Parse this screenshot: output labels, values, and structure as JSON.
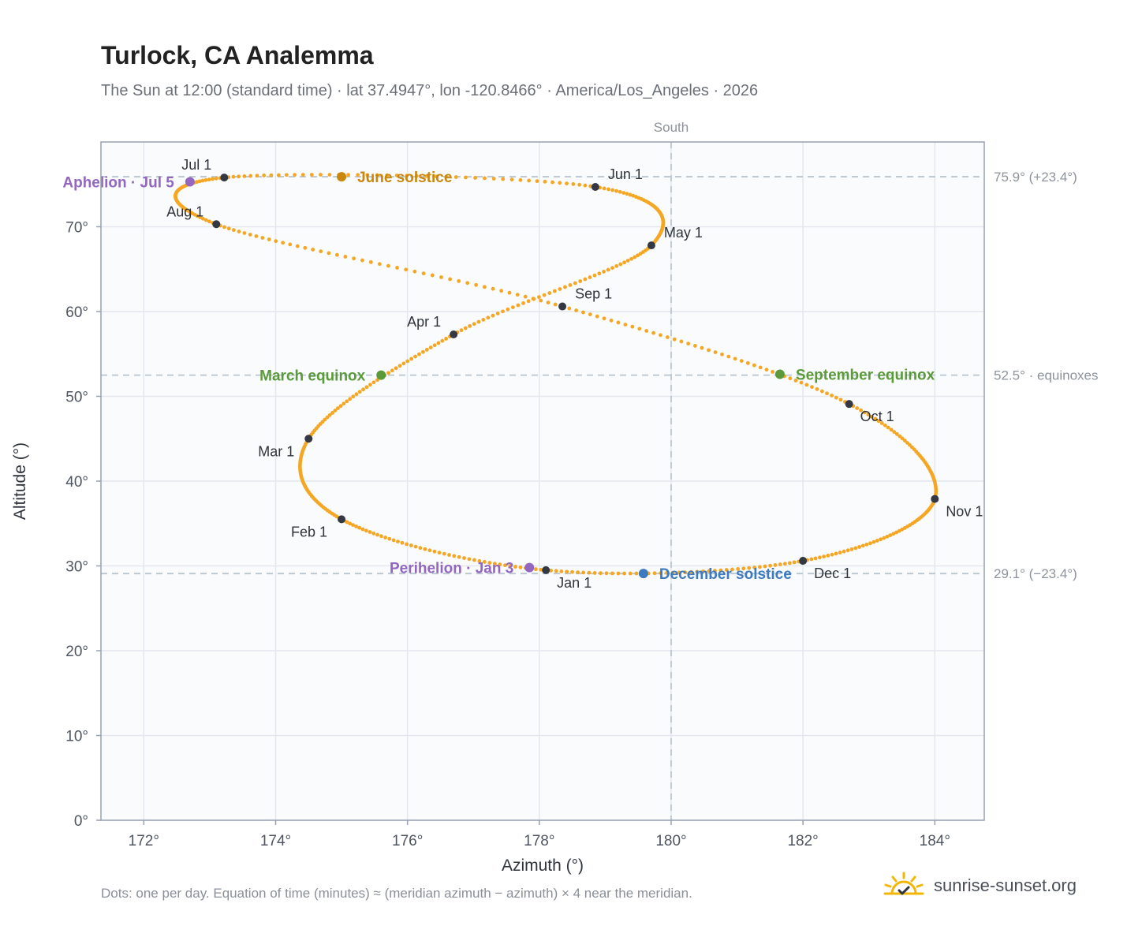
{
  "header": {
    "title": "Turlock, CA Analemma",
    "subtitle": "The Sun at 12:00 (standard time) · lat 37.4947°, lon -120.8466° · America/Los_Angeles · 2026"
  },
  "footer": {
    "note": "Dots: one per day. Equation of time (minutes) ≈ (meridian azimuth − azimuth) × 4 near the meridian.",
    "brand": "sunrise-sunset.org",
    "brand_icon": "sun-check-icon"
  },
  "chart_data": {
    "type": "scatter",
    "title": "Turlock, CA Analemma",
    "xlabel": "Azimuth (°)",
    "ylabel": "Altitude (°)",
    "xlim": [
      171.35,
      184.75
    ],
    "ylim": [
      0,
      80
    ],
    "xticks": [
      172,
      174,
      176,
      178,
      180,
      182,
      184
    ],
    "xtick_labels": [
      "172°",
      "174°",
      "176°",
      "178°",
      "180°",
      "182°",
      "184°"
    ],
    "yticks": [
      0,
      10,
      20,
      30,
      40,
      50,
      60,
      70
    ],
    "ytick_labels": [
      "0°",
      "10°",
      "20°",
      "30°",
      "40°",
      "50°",
      "60°",
      "70°"
    ],
    "grid": true,
    "meridian": {
      "azimuth": 180,
      "label": "South"
    },
    "reference_lines": [
      {
        "altitude": 75.9,
        "label": "75.9° (+23.4°)"
      },
      {
        "altitude": 52.5,
        "label": "52.5° · equinoxes"
      },
      {
        "altitude": 29.1,
        "label": "29.1° (−23.4°)"
      }
    ],
    "path_anchors": [
      {
        "x": 178.1,
        "y": 29.5
      },
      {
        "x": 175.0,
        "y": 35.5
      },
      {
        "x": 174.5,
        "y": 45.0
      },
      {
        "x": 176.7,
        "y": 57.3
      },
      {
        "x": 179.7,
        "y": 67.8
      },
      {
        "x": 178.85,
        "y": 74.7
      },
      {
        "x": 173.22,
        "y": 75.8
      },
      {
        "x": 173.1,
        "y": 70.3
      },
      {
        "x": 178.35,
        "y": 60.6
      },
      {
        "x": 182.7,
        "y": 49.1
      },
      {
        "x": 184.0,
        "y": 37.9
      },
      {
        "x": 182.0,
        "y": 30.6
      },
      {
        "x": 178.1,
        "y": 29.5
      }
    ],
    "month_markers": [
      {
        "label": "Jan 1",
        "x": 178.1,
        "y": 29.5,
        "pos": "below-right"
      },
      {
        "label": "Feb 1",
        "x": 175.0,
        "y": 35.5,
        "pos": "below-left"
      },
      {
        "label": "Mar 1",
        "x": 174.5,
        "y": 45.0,
        "pos": "below-left"
      },
      {
        "label": "Apr 1",
        "x": 176.7,
        "y": 57.3,
        "pos": "above-left"
      },
      {
        "label": "May 1",
        "x": 179.7,
        "y": 67.8,
        "pos": "above-right"
      },
      {
        "label": "Jun 1",
        "x": 178.85,
        "y": 74.7,
        "pos": "above-right"
      },
      {
        "label": "Jul 1",
        "x": 173.22,
        "y": 75.8,
        "pos": "above-left"
      },
      {
        "label": "Aug 1",
        "x": 173.1,
        "y": 70.3,
        "pos": "above-left"
      },
      {
        "label": "Sep 1",
        "x": 178.35,
        "y": 60.6,
        "pos": "above-right"
      },
      {
        "label": "Oct 1",
        "x": 182.7,
        "y": 49.1,
        "pos": "below-right"
      },
      {
        "label": "Nov 1",
        "x": 184.0,
        "y": 37.9,
        "pos": "below-right"
      },
      {
        "label": "Dec 1",
        "x": 182.0,
        "y": 30.6,
        "pos": "below-right"
      }
    ],
    "events": [
      {
        "label": "June solstice",
        "x": 175.0,
        "y": 75.9,
        "color": "#c9870d",
        "side": "right"
      },
      {
        "label": "March equinox",
        "x": 175.6,
        "y": 52.5,
        "color": "#5a9a3a",
        "side": "left"
      },
      {
        "label": "September equinox",
        "x": 181.65,
        "y": 52.6,
        "color": "#5a9a3a",
        "side": "right"
      },
      {
        "label": "December solstice",
        "x": 179.58,
        "y": 29.1,
        "color": "#3d7abf",
        "side": "right"
      },
      {
        "label": "Aphelion · Jul 5",
        "x": 172.7,
        "y": 75.3,
        "color": "#9367bf",
        "side": "left"
      },
      {
        "label": "Perihelion · Jan 3",
        "x": 177.85,
        "y": 29.8,
        "color": "#9367bf",
        "side": "left"
      }
    ],
    "colors": {
      "daily_dots": "#f5a623",
      "month_markers": "#333842",
      "plot_background": "#f9fbfd",
      "frame": "#97a1b0",
      "grid": "#e3e8ee",
      "reference_line": "#b9c6cf",
      "tick_label": "#4f5560",
      "reference_label": "#8d939c"
    }
  }
}
